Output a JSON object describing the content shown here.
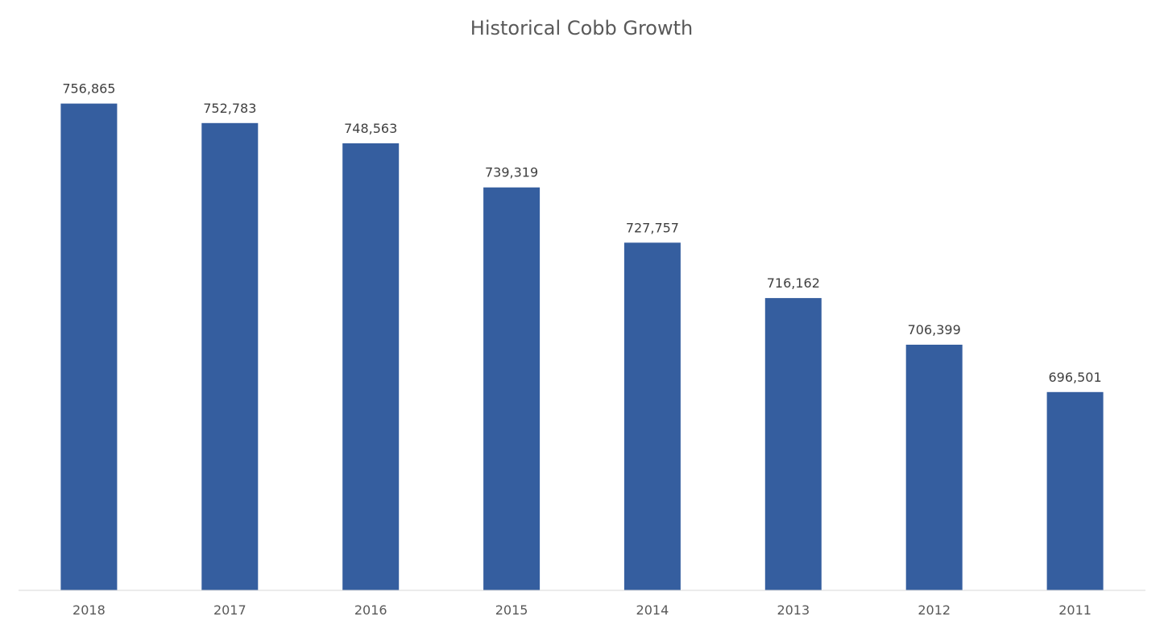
{
  "chart_data": {
    "type": "bar",
    "title": "Historical Cobb Growth",
    "xlabel": "",
    "ylabel": "",
    "categories": [
      "2018",
      "2017",
      "2016",
      "2015",
      "2014",
      "2013",
      "2012",
      "2011"
    ],
    "values": [
      756865,
      752783,
      748563,
      739319,
      727757,
      716162,
      706399,
      696501
    ],
    "data_labels": [
      "756,865",
      "752,783",
      "748,563",
      "739,319",
      "727,757",
      "716,162",
      "706,399",
      "696,501"
    ],
    "ylim": [
      655000,
      760000
    ],
    "grid": false,
    "legend": "none",
    "bar_color": "#355E9F",
    "axis_color": "#D9D9D9"
  }
}
